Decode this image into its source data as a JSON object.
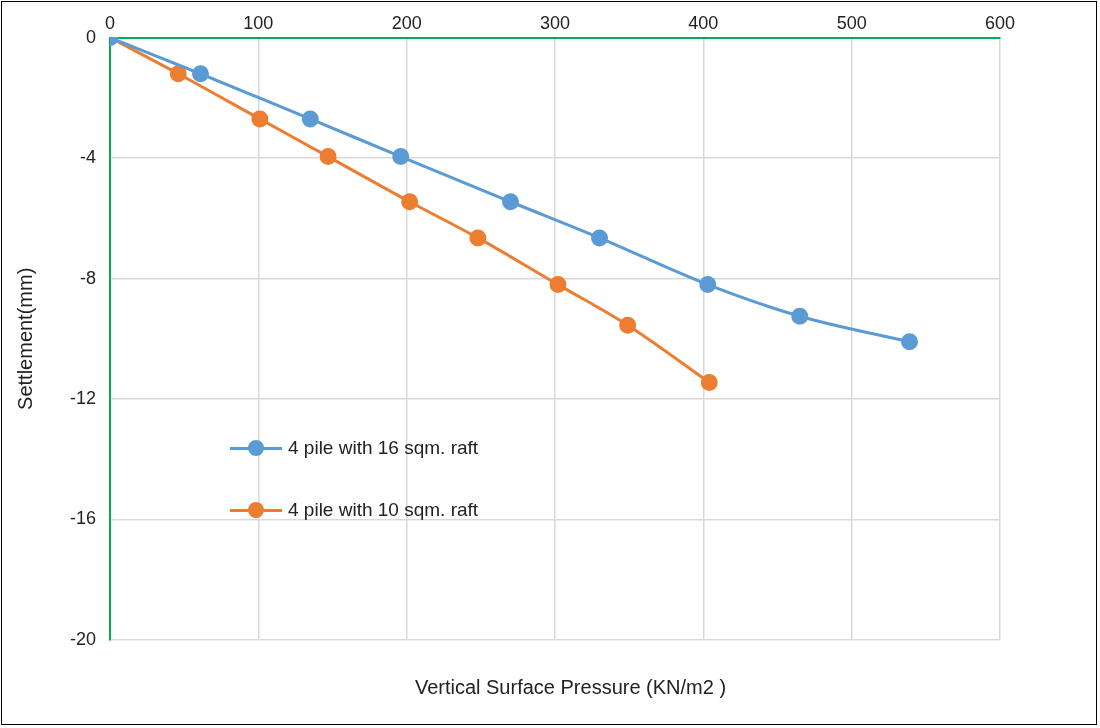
{
  "chart_data": {
    "type": "line",
    "xlabel": "Vertical Surface Pressure (KN/m2 )",
    "ylabel": "Settlement(mm)",
    "xlim": [
      0,
      600
    ],
    "xticks": [
      0,
      100,
      200,
      300,
      400,
      500,
      600
    ],
    "ylim": [
      -20,
      0
    ],
    "yticks": [
      -20,
      -16,
      -12,
      -8,
      -4,
      0
    ],
    "grid": true,
    "legend": "left",
    "marker": "circle",
    "line_style": "solid",
    "series": [
      {
        "name": "4 pile with 16 sqm. raft",
        "color": "#5b9bd5",
        "x": [
          0,
          61,
          135,
          196,
          270,
          330,
          403,
          465,
          539
        ],
        "values": [
          0,
          -1.2,
          -2.7,
          -3.95,
          -5.45,
          -6.65,
          -8.2,
          -9.25,
          -10.1
        ]
      },
      {
        "name": "4 pile with 10 sqm. raft",
        "color": "#ed7d31",
        "x": [
          0,
          46,
          101,
          147,
          202,
          248,
          302,
          349,
          404
        ],
        "values": [
          0,
          -1.2,
          -2.7,
          -3.95,
          -5.45,
          -6.65,
          -8.2,
          -9.55,
          -11.45
        ]
      }
    ]
  }
}
